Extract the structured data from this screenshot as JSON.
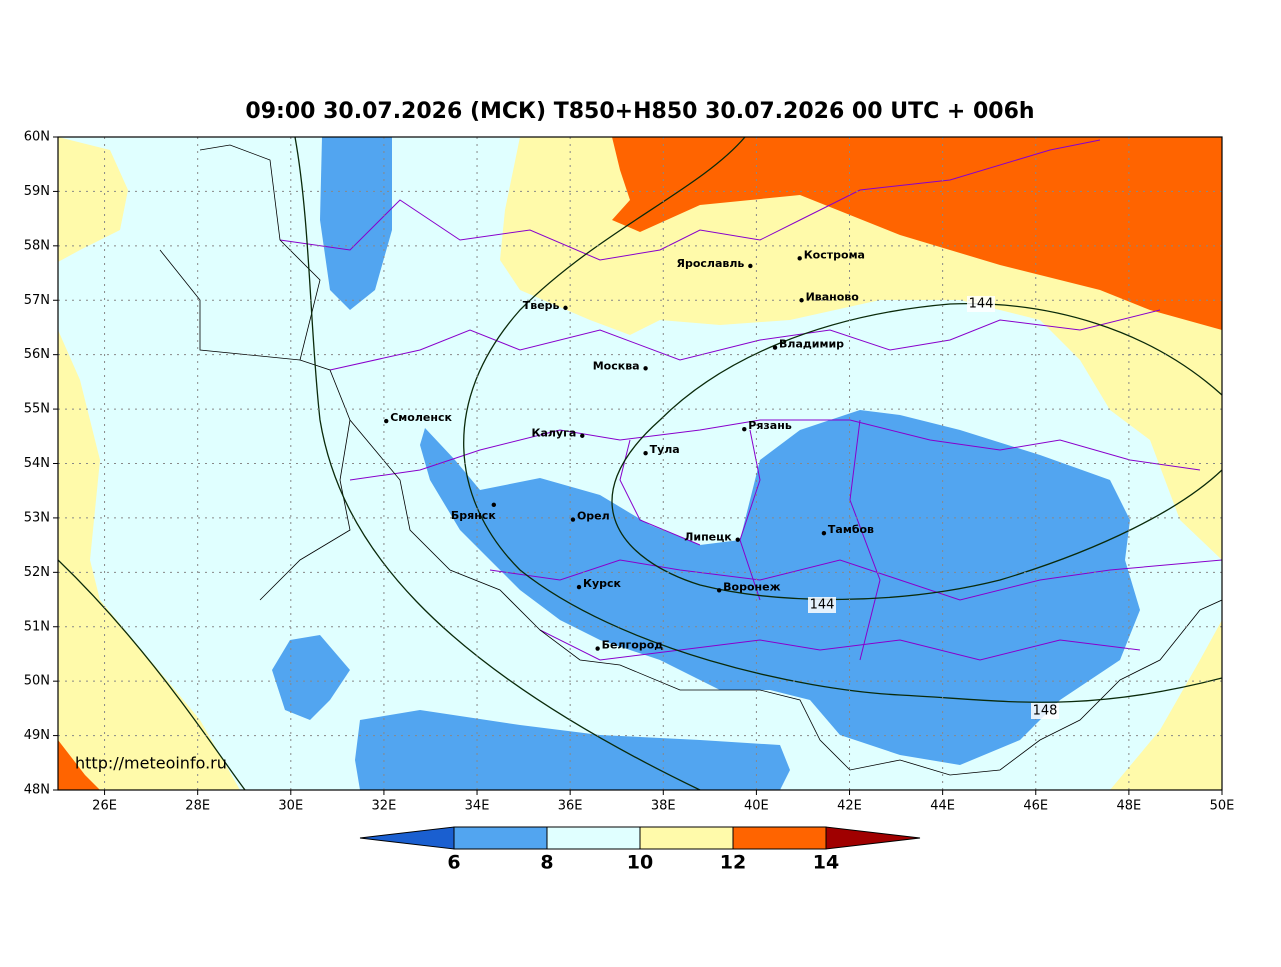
{
  "title": "09:00 30.07.2026 (МСК) T850+H850 30.07.2026 00 UTC + 006h",
  "watermark": "http://meteoinfo.ru",
  "lat_ticks": [
    {
      "value": 60,
      "label": "60N"
    },
    {
      "value": 59,
      "label": "59N"
    },
    {
      "value": 58,
      "label": "58N"
    },
    {
      "value": 57,
      "label": "57N"
    },
    {
      "value": 56,
      "label": "56N"
    },
    {
      "value": 55,
      "label": "55N"
    },
    {
      "value": 54,
      "label": "54N"
    },
    {
      "value": 53,
      "label": "53N"
    },
    {
      "value": 52,
      "label": "52N"
    },
    {
      "value": 51,
      "label": "51N"
    },
    {
      "value": 50,
      "label": "50N"
    },
    {
      "value": 49,
      "label": "49N"
    },
    {
      "value": 48,
      "label": "48N"
    }
  ],
  "lon_ticks": [
    {
      "value": 26,
      "label": "26E"
    },
    {
      "value": 28,
      "label": "28E"
    },
    {
      "value": 30,
      "label": "30E"
    },
    {
      "value": 32,
      "label": "32E"
    },
    {
      "value": 34,
      "label": "34E"
    },
    {
      "value": 36,
      "label": "36E"
    },
    {
      "value": 38,
      "label": "38E"
    },
    {
      "value": 40,
      "label": "40E"
    },
    {
      "value": 42,
      "label": "42E"
    },
    {
      "value": 44,
      "label": "44E"
    },
    {
      "value": 46,
      "label": "46E"
    },
    {
      "value": 48,
      "label": "48E"
    },
    {
      "value": 50,
      "label": "50E"
    }
  ],
  "cities": [
    {
      "name": "Ярославль",
      "lon": 39.87,
      "lat": 57.63
    },
    {
      "name": "Кострома",
      "lon": 40.93,
      "lat": 57.77
    },
    {
      "name": "Тверь",
      "lon": 35.9,
      "lat": 56.86
    },
    {
      "name": "Иваново",
      "lon": 40.97,
      "lat": 57.0
    },
    {
      "name": "Владимир",
      "lon": 40.4,
      "lat": 56.13
    },
    {
      "name": "Москва",
      "lon": 37.62,
      "lat": 55.75
    },
    {
      "name": "Смоленск",
      "lon": 32.05,
      "lat": 54.78
    },
    {
      "name": "Калуга",
      "lon": 36.26,
      "lat": 54.51
    },
    {
      "name": "Тула",
      "lon": 37.62,
      "lat": 54.19
    },
    {
      "name": "Рязань",
      "lon": 39.74,
      "lat": 54.63
    },
    {
      "name": "Брянск",
      "lon": 34.36,
      "lat": 53.24
    },
    {
      "name": "Орел",
      "lon": 36.06,
      "lat": 52.97
    },
    {
      "name": "Липецк",
      "lon": 39.6,
      "lat": 52.6
    },
    {
      "name": "Тамбов",
      "lon": 41.45,
      "lat": 52.72
    },
    {
      "name": "Курск",
      "lon": 36.19,
      "lat": 51.73
    },
    {
      "name": "Воронеж",
      "lon": 39.2,
      "lat": 51.67
    },
    {
      "name": "Белгород",
      "lon": 36.59,
      "lat": 50.6
    }
  ],
  "contour_labels": [
    144,
    144,
    148
  ],
  "colorbar": {
    "ticks": [
      6,
      8,
      10,
      12,
      14
    ],
    "colors": [
      "#1a5fd0",
      "#52a5f0",
      "#e0ffff",
      "#fffaaa",
      "#ff6400",
      "#a00000"
    ]
  }
}
